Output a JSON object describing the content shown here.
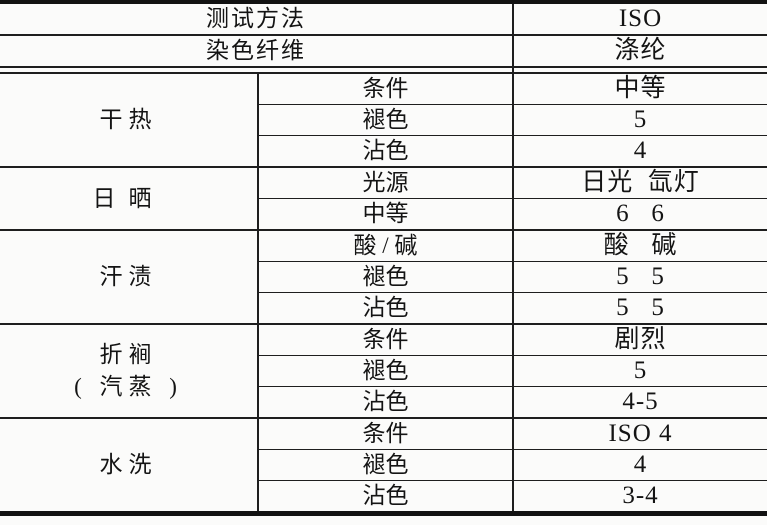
{
  "table": {
    "title_semantic": "色牢度测试结果表",
    "header_rows": [
      {
        "label": "测试方法",
        "value": "ISO"
      },
      {
        "label": "染色纤维",
        "value": "涤纶"
      }
    ],
    "groups": [
      {
        "name": "干热",
        "rows": [
          {
            "label": "条件",
            "value": "中等"
          },
          {
            "label": "褪色",
            "value": "5"
          },
          {
            "label": "沾色",
            "value": "4"
          }
        ]
      },
      {
        "name": "日晒",
        "rows": [
          {
            "label": "光源",
            "value": "日光  氙灯"
          },
          {
            "label": "中等",
            "value": "6   6"
          }
        ]
      },
      {
        "name": "汗渍",
        "rows": [
          {
            "label": "酸 / 碱",
            "value": "酸   碱"
          },
          {
            "label": "褪色",
            "value": "5   5"
          },
          {
            "label": "沾色",
            "value": "5   5"
          }
        ]
      },
      {
        "name": "折裥\n( 汽蒸 )",
        "rows": [
          {
            "label": "条件",
            "value": "剧烈"
          },
          {
            "label": "褪色",
            "value": "5"
          },
          {
            "label": "沾色",
            "value": "4-5"
          }
        ]
      },
      {
        "name": "水洗",
        "rows": [
          {
            "label": "条件",
            "value": "ISO 4"
          },
          {
            "label": "褪色",
            "value": "4"
          },
          {
            "label": "沾色",
            "value": "3-4"
          }
        ]
      }
    ],
    "colors": {
      "rule_line": "#1e1e1e",
      "heavy_border": "#121212",
      "text": "#141414",
      "paper": "#fbfbfa"
    }
  }
}
